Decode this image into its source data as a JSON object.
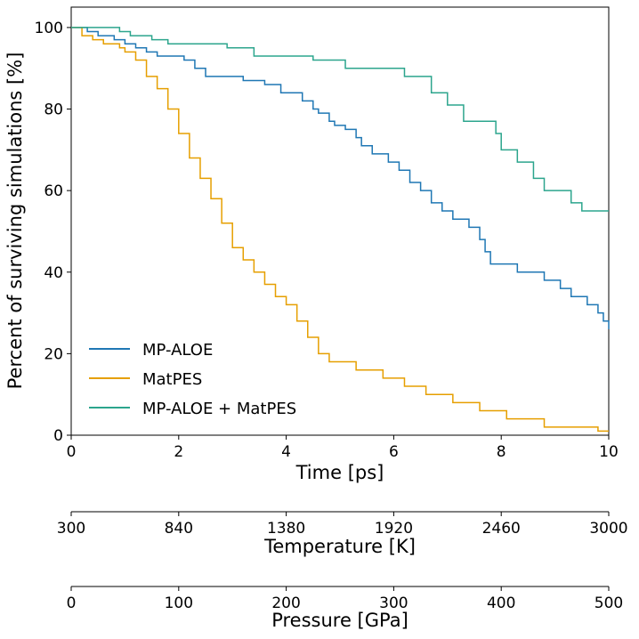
{
  "chart_data": {
    "type": "line",
    "title": "",
    "xlabel": "Time [ps]",
    "ylabel": "Percent of surviving simulations [%]",
    "xlim": [
      0,
      10
    ],
    "ylim": [
      0,
      105
    ],
    "xticks": [
      "0",
      "2",
      "4",
      "6",
      "8",
      "10"
    ],
    "yticks": [
      "0",
      "20",
      "40",
      "60",
      "80",
      "100"
    ],
    "secondary_axes": [
      {
        "label": "Temperature [K]",
        "ticks": [
          "300",
          "840",
          "1380",
          "1920",
          "2460",
          "3000"
        ]
      },
      {
        "label": "Pressure [GPa]",
        "ticks": [
          "0",
          "100",
          "200",
          "300",
          "400",
          "500"
        ]
      }
    ],
    "legend_position": "lower-left",
    "series": [
      {
        "name": "MP-ALOE",
        "color": "#1f77b4",
        "step_x": [
          0,
          0.3,
          0.5,
          0.8,
          1.0,
          1.2,
          1.4,
          1.6,
          2.1,
          2.3,
          2.5,
          3.2,
          3.6,
          3.9,
          4.3,
          4.5,
          4.6,
          4.8,
          4.9,
          5.1,
          5.3,
          5.4,
          5.6,
          5.9,
          6.1,
          6.3,
          6.5,
          6.7,
          6.9,
          7.1,
          7.4,
          7.6,
          7.7,
          7.8,
          8.3,
          8.8,
          9.1,
          9.3,
          9.6,
          9.8,
          9.9,
          10
        ],
        "step_y": [
          100,
          99,
          98,
          97,
          96,
          95,
          94,
          93,
          92,
          90,
          88,
          87,
          86,
          84,
          82,
          80,
          79,
          77,
          76,
          75,
          73,
          71,
          69,
          67,
          65,
          62,
          60,
          57,
          55,
          53,
          51,
          48,
          45,
          42,
          40,
          38,
          36,
          34,
          32,
          30,
          28,
          26
        ]
      },
      {
        "name": "MatPES",
        "color": "#e69f00",
        "step_x": [
          0,
          0.2,
          0.4,
          0.6,
          0.9,
          1.0,
          1.2,
          1.4,
          1.6,
          1.8,
          2.0,
          2.2,
          2.4,
          2.6,
          2.8,
          3.0,
          3.2,
          3.4,
          3.6,
          3.8,
          4.0,
          4.2,
          4.4,
          4.6,
          4.8,
          5.3,
          5.8,
          6.2,
          6.6,
          7.1,
          7.6,
          8.1,
          8.8,
          9.8,
          10
        ],
        "step_y": [
          100,
          98,
          97,
          96,
          95,
          94,
          92,
          88,
          85,
          80,
          74,
          68,
          63,
          58,
          52,
          46,
          43,
          40,
          37,
          34,
          32,
          28,
          24,
          20,
          18,
          16,
          14,
          12,
          10,
          8,
          6,
          4,
          2,
          1,
          1
        ]
      },
      {
        "name": "MP-ALOE + MatPES",
        "color": "#2ca58d",
        "step_x": [
          0,
          0.9,
          1.1,
          1.5,
          1.8,
          2.9,
          3.4,
          4.5,
          5.1,
          6.2,
          6.7,
          7.0,
          7.3,
          7.9,
          8.0,
          8.3,
          8.6,
          8.8,
          9.3,
          9.5,
          10
        ],
        "step_y": [
          100,
          99,
          98,
          97,
          96,
          95,
          93,
          92,
          90,
          88,
          84,
          81,
          77,
          74,
          70,
          67,
          63,
          60,
          57,
          55,
          55
        ]
      }
    ]
  }
}
